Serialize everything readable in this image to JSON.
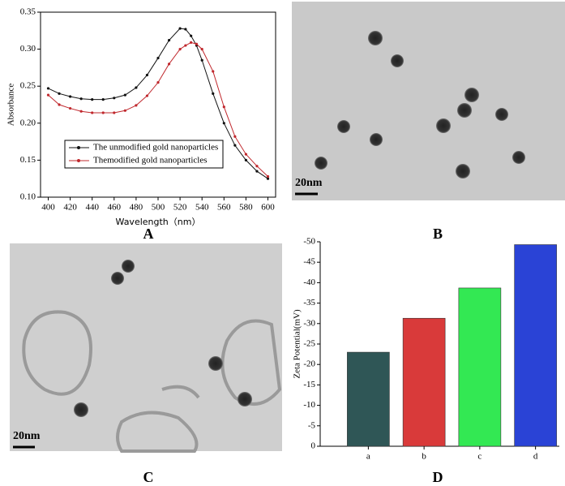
{
  "chart_data": [
    {
      "type": "line",
      "panel_label": "A",
      "xlabel": "Wavelength（nm）",
      "ylabel": "Absorbance",
      "x": [
        400,
        410,
        420,
        430,
        440,
        450,
        460,
        470,
        480,
        490,
        500,
        510,
        520,
        525,
        530,
        535,
        540,
        550,
        560,
        570,
        580,
        590,
        600
      ],
      "series": [
        {
          "name": "The unmodified gold nanoparticles",
          "color": "#111111",
          "values": [
            0.247,
            0.24,
            0.236,
            0.233,
            0.232,
            0.232,
            0.234,
            0.238,
            0.248,
            0.265,
            0.288,
            0.312,
            0.328,
            0.327,
            0.318,
            0.305,
            0.285,
            0.24,
            0.2,
            0.17,
            0.15,
            0.135,
            0.125
          ]
        },
        {
          "name": "Themodified gold nanoparticles",
          "color": "#c0282d",
          "values": [
            0.238,
            0.225,
            0.22,
            0.216,
            0.214,
            0.214,
            0.214,
            0.217,
            0.224,
            0.237,
            0.255,
            0.28,
            0.3,
            0.305,
            0.309,
            0.307,
            0.3,
            0.27,
            0.222,
            0.182,
            0.158,
            0.142,
            0.128
          ]
        }
      ],
      "xlim": [
        393,
        607
      ],
      "xticks": [
        400,
        420,
        440,
        460,
        480,
        500,
        520,
        540,
        560,
        580,
        600
      ],
      "ylim": [
        0.1,
        0.35
      ],
      "yticks": [
        {
          "value": 0.1,
          "label": "0.10"
        },
        0.15,
        {
          "value": 0.2,
          "label": "0.20"
        },
        0.25,
        {
          "value": 0.3,
          "label": "0.30"
        },
        0.35
      ],
      "legend": "lower-left"
    },
    {
      "type": "bar",
      "panel_label": "D",
      "ylabel": "Zeta Potential(mV)",
      "categories": [
        "a",
        "b",
        "c",
        "d"
      ],
      "values": [
        -23,
        -31.3,
        -38.7,
        -49.3
      ],
      "colors": [
        "#2f5656",
        "#d93a3a",
        "#33e853",
        "#2a43d6"
      ],
      "ylim": [
        0,
        -50
      ],
      "yticks": [
        0,
        -5,
        -10,
        -15,
        -20,
        -25,
        -30,
        -35,
        -40,
        -45,
        -50
      ]
    }
  ],
  "images": [
    {
      "label": "B",
      "scale_bar": "20nm"
    },
    {
      "label": "C",
      "scale_bar": "20nm"
    }
  ]
}
